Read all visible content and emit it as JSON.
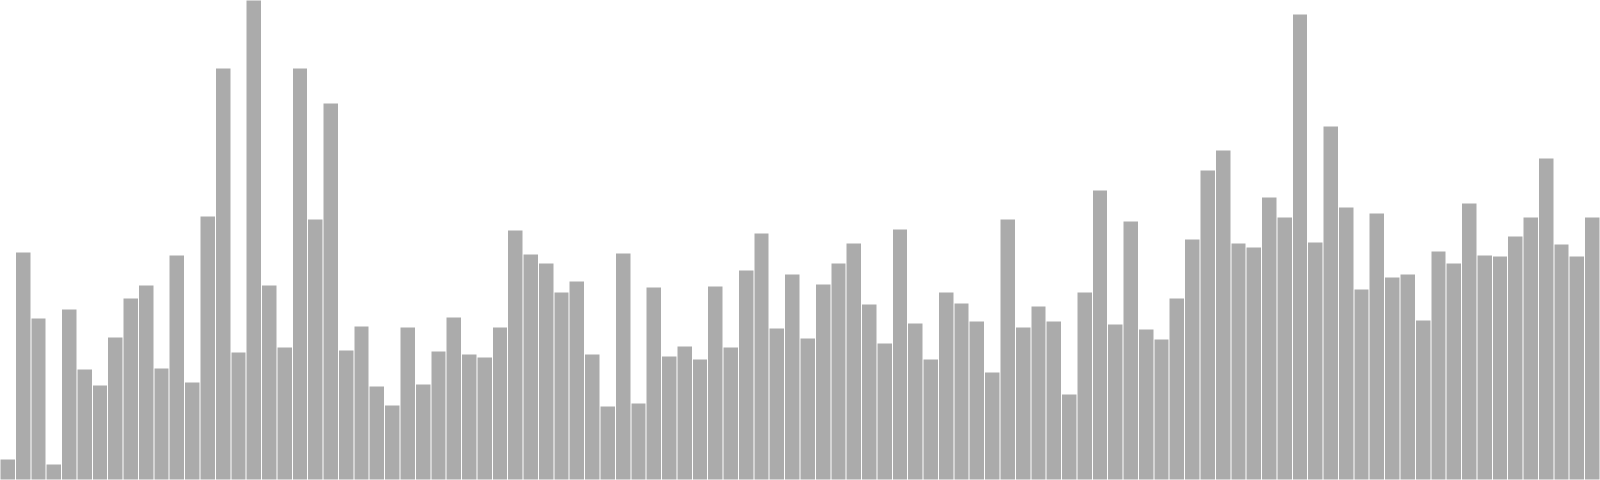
{
  "chart_data": {
    "type": "bar",
    "title": "",
    "xlabel": "",
    "ylabel": "",
    "ylim": [
      0,
      480
    ],
    "grid": false,
    "legend": "none",
    "bar_color": "#ababab",
    "values": [
      21,
      228,
      162,
      16,
      171,
      111,
      95,
      143,
      182,
      195,
      112,
      225,
      98,
      264,
      412,
      128,
      480,
      195,
      133,
      412,
      261,
      377,
      130,
      154,
      94,
      75,
      153,
      96,
      129,
      163,
      126,
      123,
      153,
      250,
      226,
      217,
      188,
      199,
      126,
      74,
      227,
      77,
      193,
      124,
      134,
      121,
      194,
      133,
      210,
      247,
      152,
      206,
      142,
      196,
      217,
      237,
      176,
      137,
      251,
      157,
      121,
      188,
      177,
      159,
      108,
      261,
      153,
      174,
      159,
      86,
      188,
      290,
      156,
      259,
      151,
      141,
      182,
      241,
      310,
      330,
      237,
      233,
      283,
      263,
      466,
      238,
      354,
      273,
      191,
      267,
      203,
      206,
      160,
      229,
      217,
      277,
      225,
      224,
      244,
      263,
      322,
      236,
      224,
      263
    ]
  }
}
